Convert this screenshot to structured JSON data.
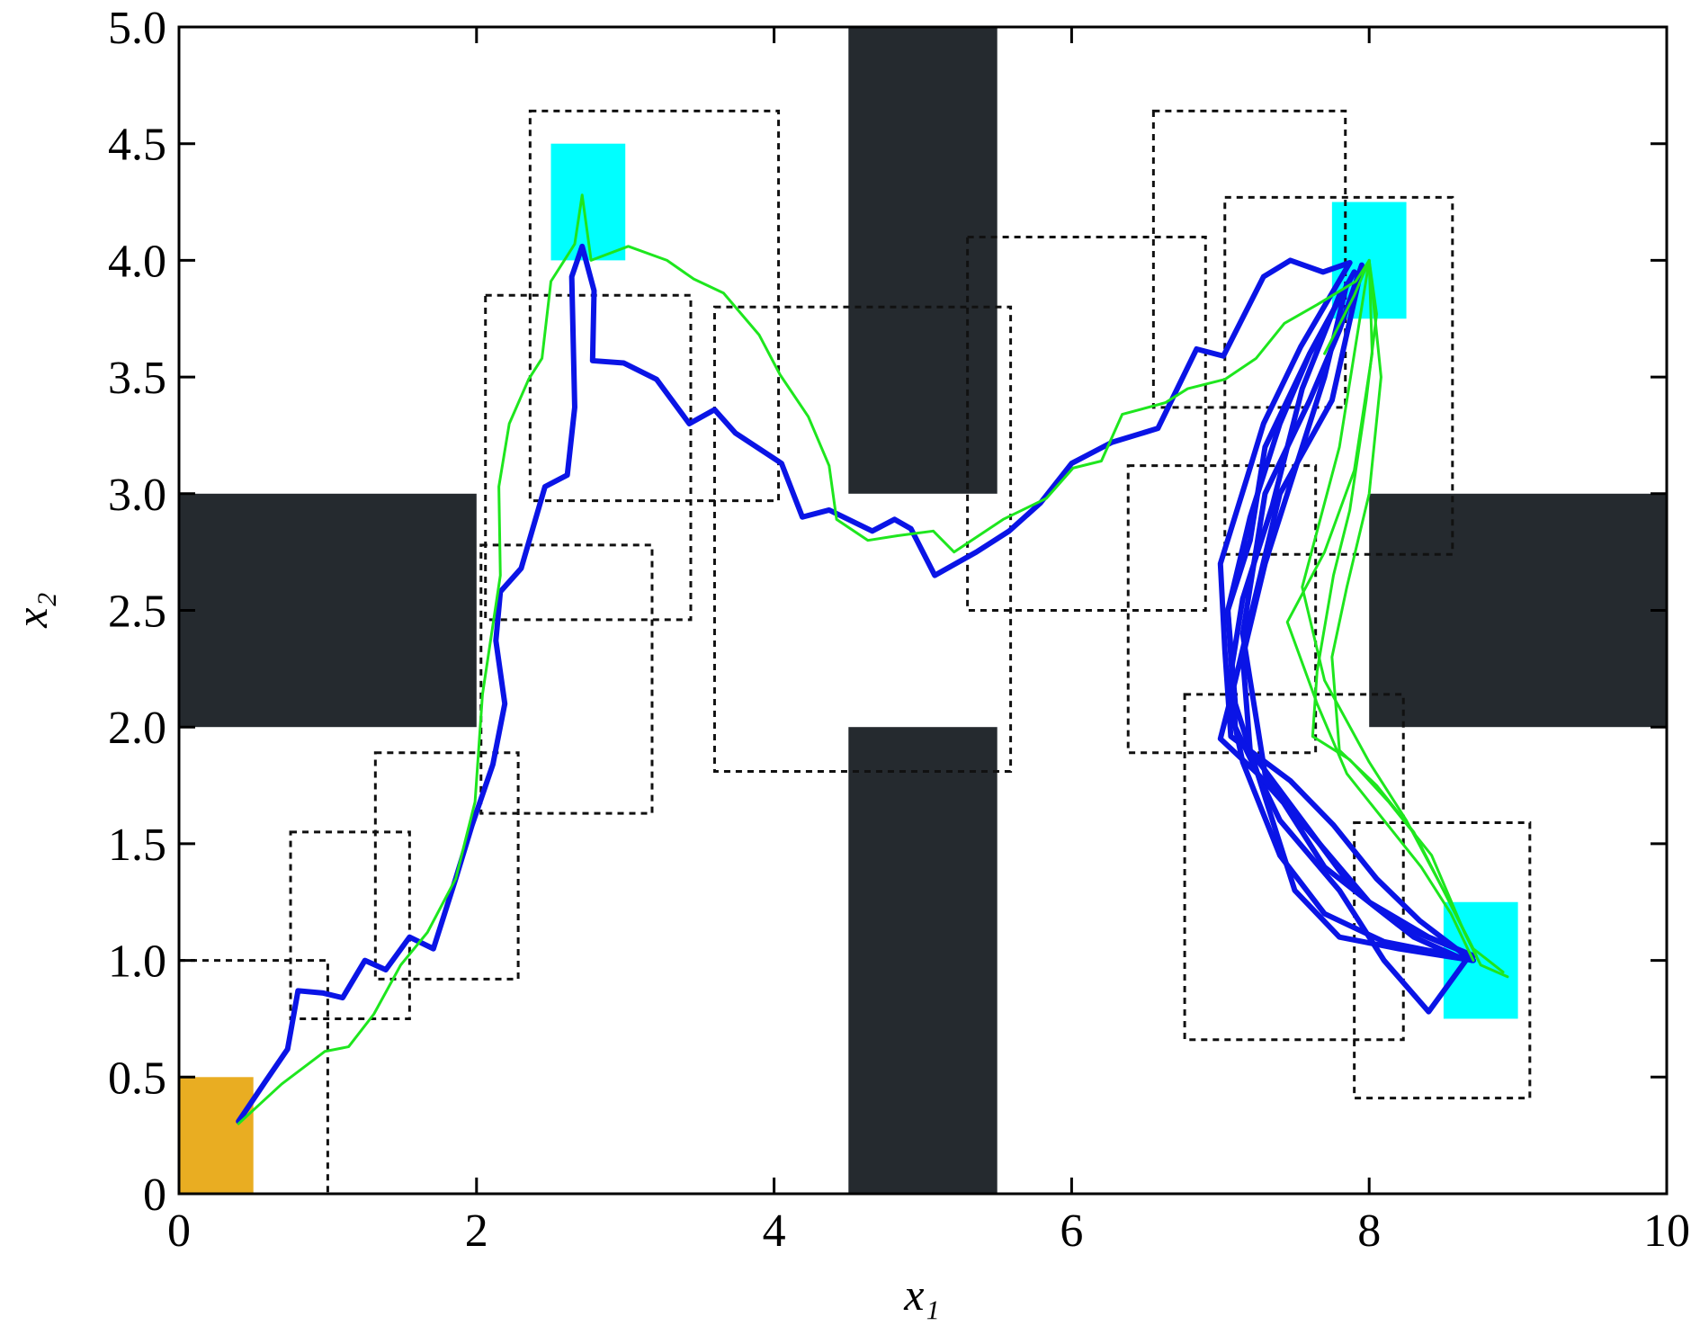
{
  "chart_data": {
    "type": "line",
    "xlabel": "x₁",
    "ylabel": "x₂",
    "xlim": [
      0,
      10
    ],
    "ylim": [
      0,
      5
    ],
    "xticks": [
      0,
      2,
      4,
      6,
      8,
      10
    ],
    "yticks": [
      0,
      0.5,
      {
        "value": 1,
        "label": "1.0"
      },
      1.5,
      {
        "value": 2,
        "label": "2.0"
      },
      2.5,
      {
        "value": 3,
        "label": "3.0"
      },
      3.5,
      {
        "value": 4,
        "label": "4.0"
      },
      4.5,
      {
        "value": 5,
        "label": "5.0"
      }
    ],
    "obstacle_color": "#252a2f",
    "obstacles": [
      {
        "x": [
          0,
          2
        ],
        "y": [
          2,
          3
        ]
      },
      {
        "x": [
          4.5,
          5.5
        ],
        "y": [
          3,
          5
        ]
      },
      {
        "x": [
          4.5,
          5.5
        ],
        "y": [
          0,
          2
        ]
      },
      {
        "x": [
          8,
          10
        ],
        "y": [
          2,
          3
        ]
      }
    ],
    "start_color": "#e9ad22",
    "start": {
      "x": [
        0,
        0.5
      ],
      "y": [
        0,
        0.5
      ]
    },
    "goal_color": "#00ffff",
    "goals": [
      {
        "x": [
          2.5,
          3
        ],
        "y": [
          4,
          4.5
        ]
      },
      {
        "x": [
          7.75,
          8.25
        ],
        "y": [
          3.75,
          4.25
        ]
      },
      {
        "x": [
          8.5,
          9
        ],
        "y": [
          0.75,
          1.25
        ]
      }
    ],
    "regions": [
      {
        "x": [
          0,
          1
        ],
        "y": [
          0,
          1
        ]
      },
      {
        "x": [
          0.75,
          1.55
        ],
        "y": [
          0.75,
          1.55
        ]
      },
      {
        "x": [
          1.32,
          2.28
        ],
        "y": [
          0.92,
          1.89
        ]
      },
      {
        "x": [
          2.03,
          3.18
        ],
        "y": [
          1.63,
          2.78
        ]
      },
      {
        "x": [
          2.06,
          3.44
        ],
        "y": [
          2.46,
          3.85
        ]
      },
      {
        "x": [
          2.36,
          4.03
        ],
        "y": [
          2.97,
          4.64
        ]
      },
      {
        "x": [
          3.6,
          5.59
        ],
        "y": [
          1.81,
          3.8
        ]
      },
      {
        "x": [
          5.3,
          6.9
        ],
        "y": [
          2.5,
          4.1
        ]
      },
      {
        "x": [
          6.55,
          7.84
        ],
        "y": [
          3.37,
          4.64
        ]
      },
      {
        "x": [
          7.03,
          8.56
        ],
        "y": [
          2.74,
          4.27
        ]
      },
      {
        "x": [
          6.38,
          7.64
        ],
        "y": [
          1.89,
          3.12
        ]
      },
      {
        "x": [
          6.76,
          8.23
        ],
        "y": [
          0.66,
          2.14
        ]
      },
      {
        "x": [
          7.9,
          9.08
        ],
        "y": [
          0.41,
          1.59
        ]
      }
    ],
    "series": [
      {
        "color": "#0a14e6",
        "line_width": 6,
        "x": [
          0.4,
          0.58,
          0.73,
          0.8,
          0.97,
          1.1,
          1.25,
          1.39,
          1.55,
          1.71,
          1.86,
          1.97,
          2.11,
          2.19,
          2.13,
          2.16,
          2.3,
          2.46,
          2.61,
          2.66,
          2.64,
          2.71,
          2.79,
          2.78,
          2.99,
          3.21,
          3.43,
          3.6,
          3.74,
          4.05,
          4.19,
          4.37,
          4.66,
          4.81,
          4.92,
          5.08,
          5.36,
          5.58,
          5.79,
          6.0,
          6.27,
          6.58,
          6.84,
          7.02,
          7.29,
          7.47,
          7.69,
          7.87,
          7.54,
          7.29,
          7.18,
          7.0,
          7.03,
          7.07,
          7.47,
          7.76,
          8.05,
          8.34,
          8.69
        ],
        "y": [
          0.31,
          0.48,
          0.62,
          0.87,
          0.86,
          0.84,
          1.0,
          0.96,
          1.1,
          1.05,
          1.35,
          1.58,
          1.84,
          2.1,
          2.37,
          2.58,
          2.68,
          3.03,
          3.08,
          3.37,
          3.93,
          4.06,
          3.87,
          3.57,
          3.56,
          3.49,
          3.3,
          3.36,
          3.26,
          3.13,
          2.9,
          2.93,
          2.84,
          2.89,
          2.85,
          2.65,
          2.75,
          2.84,
          2.96,
          3.13,
          3.22,
          3.28,
          3.62,
          3.59,
          3.93,
          4.0,
          3.95,
          3.99,
          3.63,
          3.3,
          3.07,
          2.7,
          2.33,
          1.96,
          1.77,
          1.58,
          1.35,
          1.17,
          1.0
        ]
      },
      {
        "color": "#0a14e6",
        "line_width": 6,
        "x": [
          7.9,
          7.6,
          7.3,
          7.2,
          7.05,
          7.1,
          7.3,
          7.5,
          7.8,
          8.2,
          8.7
        ],
        "y": [
          3.95,
          3.6,
          3.2,
          2.8,
          2.5,
          2.1,
          1.7,
          1.3,
          1.1,
          1.05,
          1.0
        ]
      },
      {
        "color": "#0a14e6",
        "line_width": 6,
        "x": [
          7.85,
          7.7,
          7.5,
          7.3,
          7.15,
          7.2,
          7.55,
          7.9,
          8.3,
          8.65,
          8.4,
          8.1,
          7.8,
          7.4,
          7.1,
          7.05,
          7.2,
          7.4,
          7.6,
          7.9
        ],
        "y": [
          3.9,
          3.5,
          3.1,
          2.7,
          2.3,
          1.9,
          1.6,
          1.3,
          1.1,
          1.0,
          0.78,
          1.0,
          1.3,
          1.6,
          2.0,
          2.5,
          2.9,
          3.3,
          3.6,
          3.95
        ]
      },
      {
        "color": "#0a14e6",
        "line_width": 6,
        "x": [
          7.95,
          7.75,
          7.4,
          7.25,
          7.1,
          7.0,
          7.25,
          7.6,
          8.0,
          8.4,
          8.7,
          8.2,
          7.7,
          7.3,
          7.15,
          7.3,
          7.6,
          7.8,
          7.95
        ],
        "y": [
          3.97,
          3.4,
          3.0,
          2.6,
          2.2,
          1.95,
          1.8,
          1.55,
          1.25,
          1.1,
          1.02,
          1.15,
          1.4,
          1.8,
          2.4,
          3.0,
          3.4,
          3.7,
          3.98
        ]
      },
      {
        "color": "#0a14e6",
        "line_width": 6,
        "x": [
          7.8,
          7.55,
          7.35,
          7.15,
          7.05,
          7.15,
          7.4,
          7.7,
          8.1,
          8.5,
          8.7
        ],
        "y": [
          3.85,
          3.45,
          2.95,
          2.55,
          2.15,
          1.85,
          1.45,
          1.2,
          1.08,
          1.03,
          1.0
        ]
      },
      {
        "color": "#1ee61e",
        "line_width": 3,
        "x": [
          0.4,
          0.69,
          0.98,
          1.14,
          1.31,
          1.49,
          1.67,
          1.86,
          1.99,
          2.04,
          2.16,
          2.15,
          2.22,
          2.35,
          2.44,
          2.5,
          2.59,
          2.66,
          2.71,
          2.77,
          3.02,
          3.28,
          3.46,
          3.66,
          3.9,
          4.04,
          4.23,
          4.37,
          4.42,
          4.63,
          4.83,
          5.07,
          5.21,
          5.54,
          5.83,
          6.01,
          6.2,
          6.34,
          6.63,
          6.78,
          7.03,
          7.24,
          7.43,
          7.65,
          7.91,
          8.0,
          8.05,
          7.98,
          7.87,
          7.76,
          7.65,
          7.62,
          7.87,
          8.13,
          8.42,
          8.64,
          8.75,
          8.93
        ],
        "y": [
          0.3,
          0.47,
          0.61,
          0.63,
          0.77,
          0.98,
          1.12,
          1.35,
          1.68,
          2.14,
          2.65,
          3.03,
          3.3,
          3.49,
          3.58,
          3.91,
          4.0,
          4.07,
          4.28,
          4.0,
          4.06,
          4.0,
          3.92,
          3.86,
          3.68,
          3.51,
          3.33,
          3.12,
          2.89,
          2.8,
          2.82,
          2.84,
          2.75,
          2.89,
          2.98,
          3.11,
          3.14,
          3.34,
          3.39,
          3.45,
          3.49,
          3.58,
          3.73,
          3.81,
          3.91,
          4.0,
          3.77,
          3.4,
          2.93,
          2.65,
          2.24,
          1.96,
          1.86,
          1.68,
          1.45,
          1.12,
          0.98,
          0.93
        ]
      },
      {
        "color": "#1ee61e",
        "line_width": 3,
        "x": [
          8.0,
          8.02,
          7.9,
          7.7,
          7.45,
          7.65,
          7.85,
          8.1,
          8.35,
          8.55,
          8.7
        ],
        "y": [
          4.0,
          3.6,
          3.1,
          2.75,
          2.45,
          2.1,
          1.8,
          1.6,
          1.4,
          1.2,
          1.0
        ]
      },
      {
        "color": "#1ee61e",
        "line_width": 3,
        "x": [
          8.0,
          8.08,
          8.0,
          7.85,
          7.75,
          7.8,
          8.05,
          8.3,
          8.5,
          8.7,
          8.9
        ],
        "y": [
          4.0,
          3.5,
          3.0,
          2.6,
          2.3,
          1.9,
          1.75,
          1.55,
          1.3,
          1.05,
          0.95
        ]
      },
      {
        "color": "#1ee61e",
        "line_width": 3,
        "x": [
          7.7,
          7.9,
          8.0,
          7.8,
          7.55,
          7.7,
          8.0,
          8.25,
          8.5,
          8.72
        ],
        "y": [
          3.6,
          3.85,
          4.0,
          3.2,
          2.6,
          2.2,
          1.85,
          1.6,
          1.3,
          1.02
        ]
      }
    ]
  }
}
